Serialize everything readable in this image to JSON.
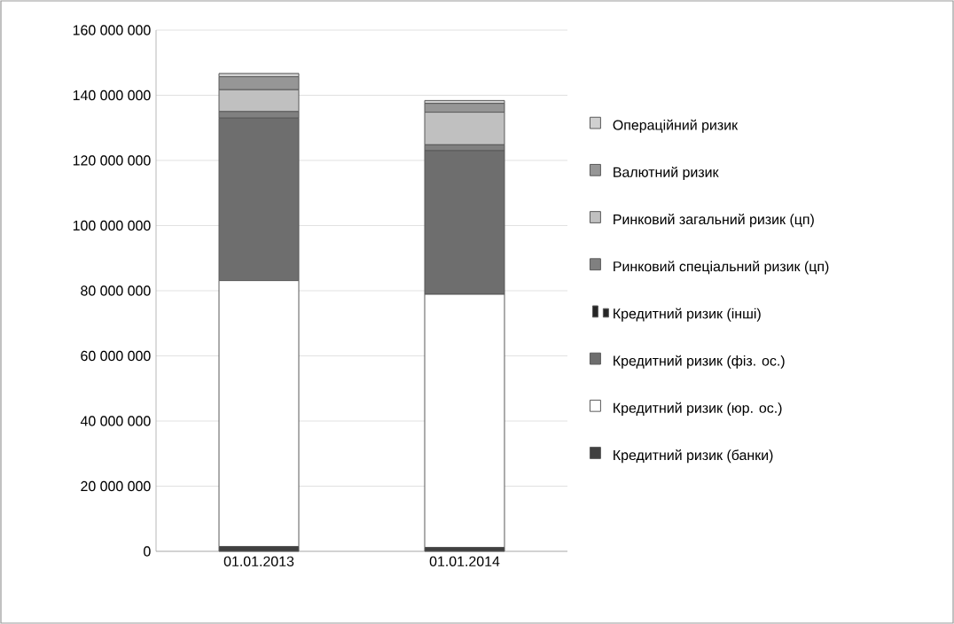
{
  "chart_data": {
    "type": "bar",
    "stacked": true,
    "categories": [
      "01.01.2013",
      "01.01.2014"
    ],
    "series": [
      {
        "name": "Кредитний ризик (банки)",
        "color": "#404040",
        "values": [
          1500000,
          1200000
        ]
      },
      {
        "name": "Кредитний ризик (юр. ос.)",
        "color": "#ffffff",
        "values": [
          81600000,
          77700000
        ]
      },
      {
        "name": "Кредитний ризик (фіз. ос.)",
        "color": "#6e6e6e",
        "values": [
          49900000,
          44100000
        ]
      },
      {
        "name": "Кредитний ризик (інші)",
        "color": "#262626",
        "values": [
          null,
          null
        ]
      },
      {
        "name": "Ринковий спеціальний ризик (цп)",
        "color": "#808080",
        "values": [
          2000000,
          1800000
        ]
      },
      {
        "name": "Ринковий загальний ризик (цп)",
        "color": "#c0c0c0",
        "values": [
          6700000,
          10000000
        ]
      },
      {
        "name": "Валютний ризик",
        "color": "#969696",
        "values": [
          4000000,
          2700000
        ]
      },
      {
        "name": "Операційний ризик",
        "color": "#d0d0d0",
        "values": [
          1000000,
          900000
        ]
      }
    ],
    "ylim": [
      0,
      160000000
    ],
    "yticks": [
      {
        "value": 0,
        "label": "0"
      },
      {
        "value": 20000000,
        "label": "20 000 000"
      },
      {
        "value": 40000000,
        "label": "40 000 000"
      },
      {
        "value": 60000000,
        "label": "60 000 000"
      },
      {
        "value": 80000000,
        "label": "80 000 000"
      },
      {
        "value": 100000000,
        "label": "100 000 000"
      },
      {
        "value": 120000000,
        "label": "120 000 000"
      },
      {
        "value": 140000000,
        "label": "140 000 000"
      },
      {
        "value": 160000000,
        "label": "160 000 000"
      }
    ],
    "grid": "y",
    "legend": "right"
  }
}
